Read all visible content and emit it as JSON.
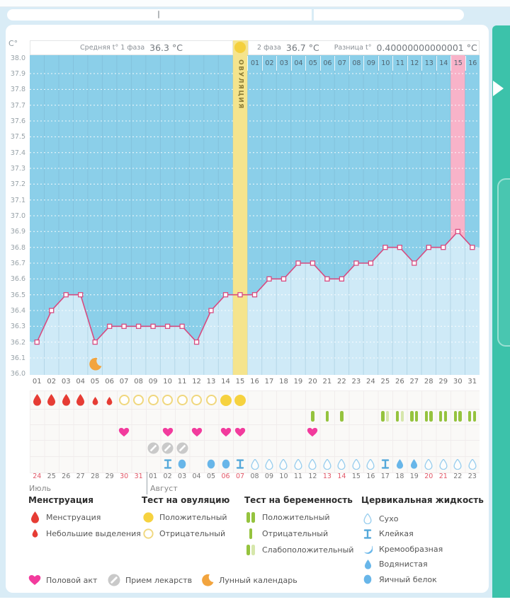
{
  "header": {
    "temp_unit": "C°",
    "phase1_label": "Средняя t° 1 фаза",
    "phase1_value": "36.3 °C",
    "phase2_label": "2 фаза",
    "phase2_value": "36.7 °C",
    "diff_label": "Разница t°",
    "diff_value": "0.40000000000001 °C",
    "ovulation_label": "ОВУЛЯЦИЯ"
  },
  "chart_data": {
    "type": "line",
    "x_days": [
      "01",
      "02",
      "03",
      "04",
      "05",
      "06",
      "07",
      "08",
      "09",
      "10",
      "11",
      "12",
      "13",
      "14",
      "15",
      "16",
      "17",
      "18",
      "19",
      "20",
      "21",
      "22",
      "23",
      "24",
      "25",
      "26",
      "27",
      "28",
      "29",
      "30",
      "31"
    ],
    "temperatures": [
      36.2,
      36.4,
      36.5,
      36.5,
      36.2,
      36.3,
      36.3,
      36.3,
      36.3,
      36.3,
      36.3,
      36.2,
      36.4,
      36.5,
      36.5,
      36.5,
      36.6,
      36.6,
      36.7,
      36.7,
      36.6,
      36.6,
      36.7,
      36.7,
      36.8,
      36.8,
      36.7,
      36.8,
      36.8,
      36.9,
      36.8
    ],
    "ylabel": "C°",
    "ylim": [
      36.0,
      38.0
    ],
    "ytick_step": 0.1,
    "grid": "dotted-horizontal",
    "ovulation_day": 15,
    "pink_highlight_day": 30,
    "phase2_day_labels": [
      "01",
      "02",
      "03",
      "04",
      "05",
      "06",
      "07",
      "08",
      "09",
      "10",
      "11",
      "12",
      "13",
      "14",
      "15",
      "16"
    ],
    "phase2_highlight_label": "15",
    "moon_day": 5
  },
  "events": {
    "menstruation_days": [
      1,
      2,
      3,
      4
    ],
    "spotting_days": [
      5,
      6
    ],
    "ovulation_test": {
      "negative": [
        7,
        8,
        9,
        10,
        11,
        12,
        13
      ],
      "positive": [
        14,
        15
      ]
    },
    "pregnancy_test": {
      "negative": [
        20,
        21,
        22
      ],
      "weak_positive": [
        25,
        26
      ],
      "positive": [
        27,
        28,
        29,
        30,
        31
      ]
    },
    "intercourse_days": [
      7,
      10,
      12,
      14,
      15,
      20
    ],
    "medication_days": [
      9,
      10,
      11
    ],
    "moon_calendar_days": [
      5
    ],
    "cervical_fluid": {
      "10": "sticky",
      "11": "eggwhite",
      "13": "eggwhite",
      "14": "eggwhite",
      "15": "sticky",
      "16": "dry",
      "17": "dry",
      "18": "dry",
      "19": "dry",
      "20": "dry",
      "21": "dry",
      "22": "dry",
      "23": "dry",
      "24": "dry",
      "25": "sticky",
      "26": "watery",
      "27": "watery",
      "28": "dry",
      "29": "dry",
      "30": "dry",
      "31": "dry"
    }
  },
  "calendar": {
    "dates": [
      "24",
      "25",
      "26",
      "27",
      "28",
      "29",
      "30",
      "31",
      "01",
      "02",
      "03",
      "04",
      "05",
      "06",
      "07",
      "08",
      "09",
      "10",
      "11",
      "12",
      "13",
      "14",
      "15",
      "16",
      "17",
      "18",
      "19",
      "20",
      "21",
      "22",
      "23"
    ],
    "red_indices": [
      0,
      6,
      7,
      13,
      14,
      20,
      21,
      27,
      28
    ],
    "month_labels": [
      "Июль",
      "Август"
    ],
    "month_divider_after_index": 7
  },
  "legend": {
    "sections": [
      {
        "title": "Менструация",
        "items": [
          {
            "icon": "drop-large",
            "label": "Менструация"
          },
          {
            "icon": "drop-small",
            "label": "Небольшие выделения"
          }
        ]
      },
      {
        "title": "Тест на овуляцию",
        "items": [
          {
            "icon": "circle-filled",
            "label": "Положительный"
          },
          {
            "icon": "circle-outline",
            "label": "Отрицательный"
          }
        ]
      },
      {
        "title": "Тест на беременность",
        "items": [
          {
            "icon": "bars-positive",
            "label": "Положительный"
          },
          {
            "icon": "bar-negative",
            "label": "Отрицательный"
          },
          {
            "icon": "bars-weak",
            "label": "Слабоположительный"
          }
        ]
      },
      {
        "title": "Цервикальная жидкость",
        "items": [
          {
            "icon": "fluid-dry",
            "label": "Сухо"
          },
          {
            "icon": "fluid-sticky",
            "label": "Клейкая"
          },
          {
            "icon": "fluid-creamy",
            "label": "Кремообразная"
          },
          {
            "icon": "fluid-watery",
            "label": "Водянистая"
          },
          {
            "icon": "fluid-eggwhite",
            "label": "Яичный белок"
          }
        ]
      }
    ],
    "footer_items": [
      {
        "icon": "heart",
        "label": "Половой акт"
      },
      {
        "icon": "pill",
        "label": "Прием лекарств"
      },
      {
        "icon": "moon",
        "label": "Лунный календарь"
      }
    ]
  },
  "colors": {
    "teal": "#3cc2aa",
    "app_bg": "#d9ecf6",
    "chart_bg": "#8bcfe9",
    "area_fill": "#cfeaf7",
    "band_yellow": "#f5e48d",
    "band_pink": "#f8b3c9",
    "line_pink": "#d84b80",
    "red_drop": "#e63c34",
    "yellow_test": "#f6d23f",
    "green_test": "#95c33e",
    "green_test_weak": "#d6e7ab",
    "heart_pink": "#f23b9d",
    "pill_gray": "#c9c9c9",
    "moon_orange": "#f2a43e",
    "fluid_blue": "#68b6e9",
    "fluid_outline": "#92cbee",
    "date_red": "#e25767"
  }
}
